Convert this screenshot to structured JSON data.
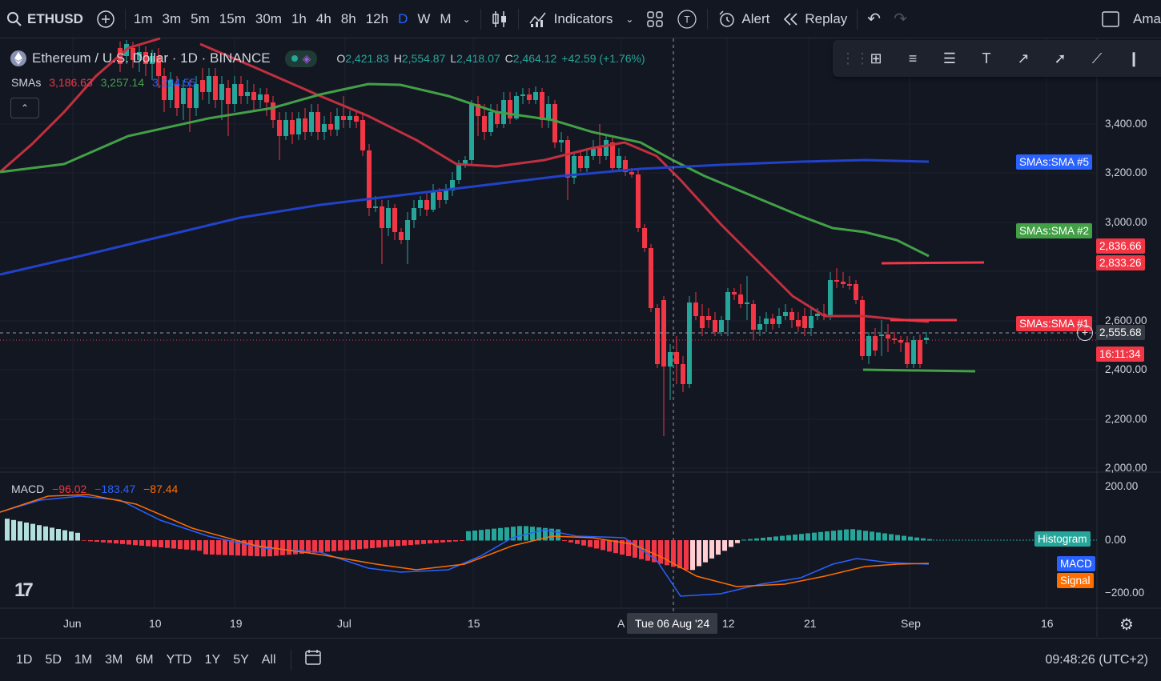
{
  "topbar": {
    "symbol": "ETHUSD",
    "timeframes": [
      "1m",
      "3m",
      "5m",
      "15m",
      "30m",
      "1h",
      "4h",
      "8h",
      "12h",
      "D",
      "W",
      "M"
    ],
    "active_timeframe": "D",
    "indicators_label": "Indicators",
    "alert_label": "Alert",
    "replay_label": "Replay",
    "truncated_label": "Ama"
  },
  "legend": {
    "title": "Ethereum / U.S. Dollar · 1D · BINANCE",
    "open_label": "O",
    "open": "2,421.83",
    "high_label": "H",
    "high": "2,554.87",
    "low_label": "L",
    "low": "2,418.07",
    "close_label": "C",
    "close": "2,464.12",
    "change": "+42.59 (+1.76%)",
    "smas_label": "SMAs",
    "sma1": "3,186.63",
    "sma2": "3,257.14",
    "sma3": "3,224.55",
    "macd_label": "MACD",
    "macd_hist": "−96.02",
    "macd_line": "−183.47",
    "macd_signal": "−87.44"
  },
  "price_axis": [
    "3,400.00",
    "3,200.00",
    "3,000.00",
    "2,600.00",
    "2,400.00",
    "2,200.00",
    "2,000.00"
  ],
  "macd_axis": [
    "200.00",
    "0.00",
    "−200.00"
  ],
  "tags": {
    "sma5": "SMAs:SMA #5",
    "sma2": "SMAs:SMA #2",
    "sma1": "SMAs:SMA #1",
    "price_hi": "2,836.66",
    "price_hi2": "2,833.26",
    "crosshair_price": "2,555.68",
    "countdown": "16:11:34",
    "histogram": "Histogram",
    "macd": "MACD",
    "signal": "Signal"
  },
  "time_axis": [
    "Jun",
    "10",
    "19",
    "Jul",
    "15",
    "A",
    "12",
    "21",
    "Sep",
    "16"
  ],
  "crosshair_date": "Tue 06 Aug '24",
  "bottombar": {
    "ranges": [
      "1D",
      "5D",
      "1M",
      "3M",
      "6M",
      "YTD",
      "1Y",
      "5Y",
      "All"
    ],
    "clock": "09:48:26 (UTC+2)"
  },
  "colors": {
    "up": "#26a69a",
    "down": "#f23645",
    "sma1": "#e0404f",
    "sma2": "#43a047",
    "sma5": "#2962ff",
    "macd": "#2962ff",
    "signal": "#ff6d00"
  }
}
